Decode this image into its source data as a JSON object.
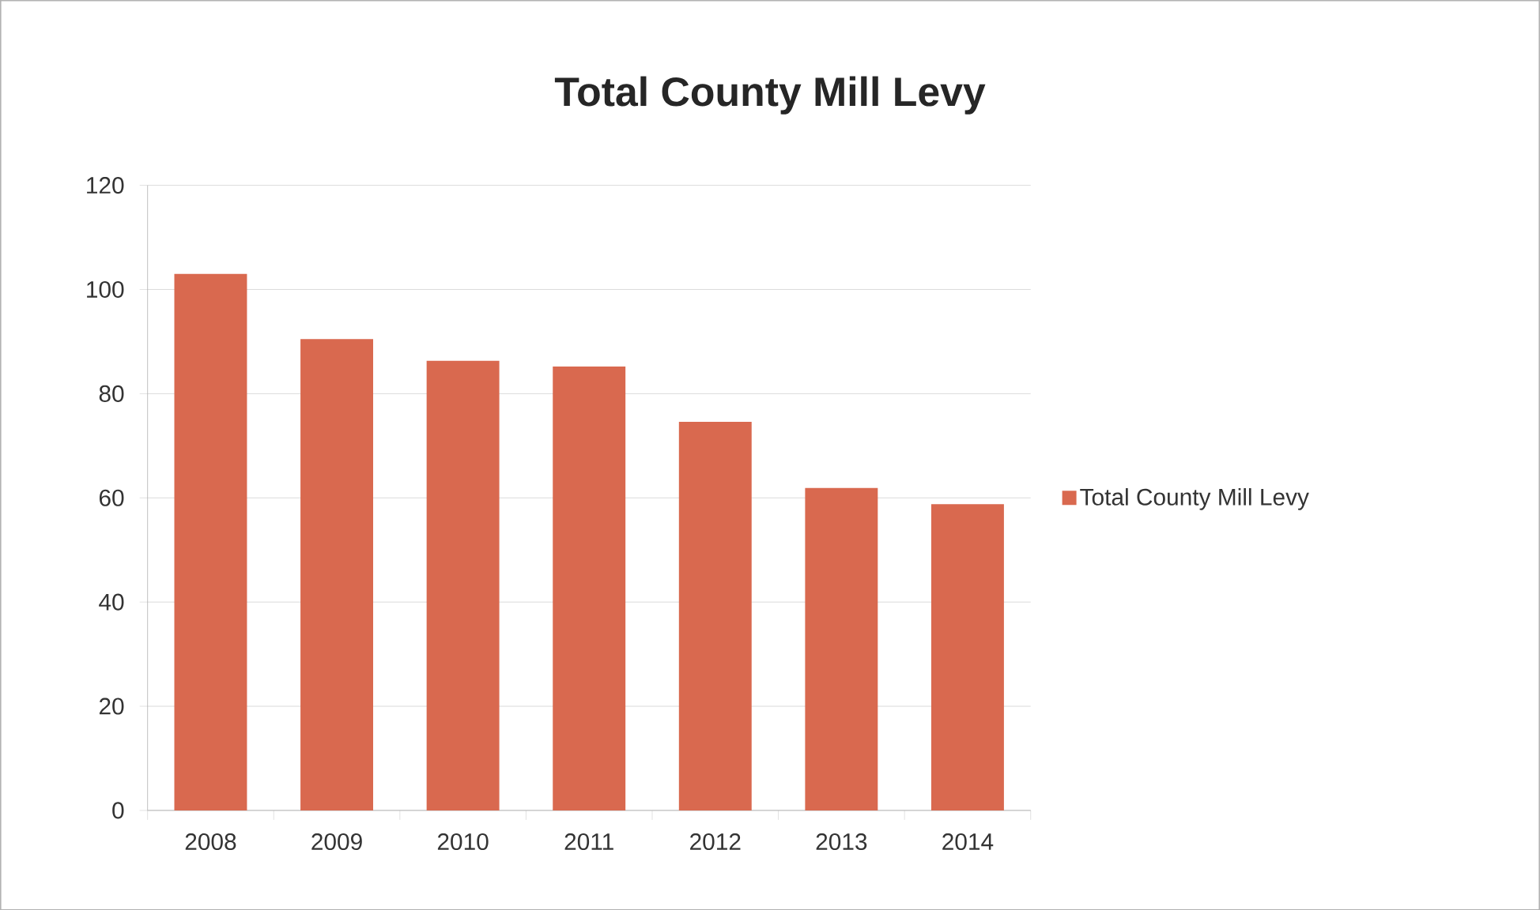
{
  "chart_data": {
    "type": "bar",
    "title": "Total County Mill Levy",
    "categories": [
      "2008",
      "2009",
      "2010",
      "2011",
      "2012",
      "2013",
      "2014"
    ],
    "series": [
      {
        "name": "Total County Mill Levy",
        "color": "#d9694f",
        "values": [
          103,
          90.5,
          86.3,
          85.2,
          74.6,
          61.9,
          58.8
        ]
      }
    ],
    "ylim": [
      0,
      120
    ],
    "yticks": [
      0,
      20,
      40,
      60,
      80,
      100,
      120
    ],
    "grid": "y",
    "legend": "right"
  }
}
